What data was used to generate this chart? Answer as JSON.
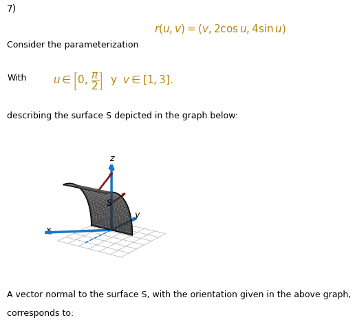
{
  "problem_number": "7)",
  "formula": "r(u, v) = (v, 2\\cos u, 4\\sin u)",
  "consider_text": "Consider the parameterization",
  "with_text": "With",
  "describe_text": "describing the surface S depicted in the graph below:",
  "bottom_text1": "A vector normal to the surface S, with the orientation given in the above graph,",
  "bottom_text2": "corresponds to:",
  "bg_color": "#ffffff",
  "formula_color": "#B8860B",
  "axis_blue": "#1874CD",
  "axis_red": "#8B1A1A",
  "surface_dark": "#696969",
  "surface_light": "#909090",
  "grid_color": "#b0b0b0",
  "text_color": "#000000"
}
